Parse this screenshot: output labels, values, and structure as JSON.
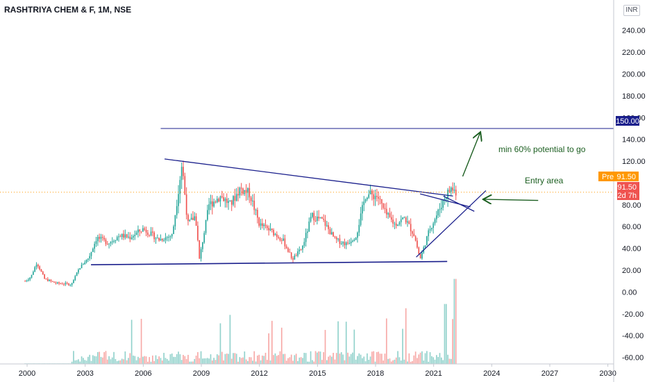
{
  "header": {
    "title": "RASHTRIYA CHEM & F, 1M, NSE",
    "currency": "INR"
  },
  "labels": {
    "target_price": "150.00",
    "pre_badge": "Pre",
    "pre_price": "91.50",
    "last_price": "91.50",
    "countdown": "12d 7h"
  },
  "annotations": {
    "potential": "min 60% potential to go",
    "entry": "Entry area"
  },
  "colors": {
    "up": "#26a69a",
    "down": "#ef5350",
    "trendline": "#1a1f8c",
    "arrow": "#1b5e20",
    "pre": "#ff9800",
    "last": "#ef5350"
  },
  "chart_data": {
    "type": "candlestick",
    "title": "RASHTRIYA CHEM & F, 1M, NSE",
    "xlabel": "",
    "ylabel": "",
    "xlim": [
      1998.6,
      2030.3
    ],
    "ylim": [
      -66,
      250
    ],
    "x_ticks": [
      2000,
      2003,
      2006,
      2009,
      2012,
      2015,
      2018,
      2021,
      2024,
      2027,
      2030
    ],
    "x_tick_labels": [
      "2000",
      "2003",
      "2006",
      "2009",
      "2012",
      "2015",
      "2018",
      "2021",
      "2024",
      "2027",
      "2030"
    ],
    "y_ticks": [
      240,
      220,
      200,
      180,
      160,
      140,
      120,
      80,
      60,
      40,
      20,
      0,
      -20,
      -40,
      -60
    ],
    "y_tick_labels": [
      "240.00",
      "220.00",
      "200.00",
      "180.00",
      "160.00",
      "140.00",
      "120.00",
      "80.00",
      "60.00",
      "40.00",
      "20.00",
      "0.00",
      "-20.00",
      "-40.00",
      "-60.00"
    ],
    "grid": false,
    "series": [
      {
        "name": "",
        "kind": "price",
        "anchors": [
          [
            1999.9,
            10
          ],
          [
            2000.2,
            14
          ],
          [
            2000.5,
            27
          ],
          [
            2000.9,
            12
          ],
          [
            2001.5,
            8
          ],
          [
            2002.3,
            7
          ],
          [
            2002.7,
            22
          ],
          [
            2003.2,
            32
          ],
          [
            2003.6,
            50
          ],
          [
            2004.2,
            45
          ],
          [
            2004.8,
            52
          ],
          [
            2005.3,
            50
          ],
          [
            2006.0,
            58
          ],
          [
            2006.8,
            48
          ],
          [
            2007.5,
            52
          ],
          [
            2008.0,
            118
          ],
          [
            2008.3,
            62
          ],
          [
            2008.7,
            70
          ],
          [
            2008.9,
            30
          ],
          [
            2009.4,
            80
          ],
          [
            2010.0,
            88
          ],
          [
            2010.5,
            80
          ],
          [
            2011.0,
            95
          ],
          [
            2011.5,
            90
          ],
          [
            2012.0,
            62
          ],
          [
            2012.6,
            56
          ],
          [
            2013.2,
            48
          ],
          [
            2013.7,
            30
          ],
          [
            2014.2,
            40
          ],
          [
            2014.7,
            70
          ],
          [
            2015.3,
            65
          ],
          [
            2015.9,
            48
          ],
          [
            2016.5,
            44
          ],
          [
            2017.0,
            52
          ],
          [
            2017.5,
            90
          ],
          [
            2018.1,
            88
          ],
          [
            2018.5,
            72
          ],
          [
            2019.0,
            62
          ],
          [
            2019.5,
            68
          ],
          [
            2020.0,
            52
          ],
          [
            2020.3,
            30
          ],
          [
            2020.8,
            58
          ],
          [
            2021.2,
            72
          ],
          [
            2021.6,
            88
          ],
          [
            2021.9,
            95
          ],
          [
            2022.2,
            91.5
          ]
        ],
        "last": 91.5
      },
      {
        "name": "",
        "kind": "volume",
        "values_note": "volume histogram shares the price axis as drawn (bars rise from about -66 to as high as 12)"
      }
    ],
    "drawings": [
      {
        "kind": "horizontal_line",
        "label": "150.00",
        "y": 150,
        "x_from": 2006.9,
        "x_to": 2030.3
      },
      {
        "kind": "trendline",
        "points": [
          [
            2007.1,
            122
          ],
          [
            2022.0,
            88
          ]
        ]
      },
      {
        "kind": "trendline",
        "points": [
          [
            2021.5,
            88
          ],
          [
            2023.1,
            74
          ]
        ]
      },
      {
        "kind": "support_line",
        "points": [
          [
            2003.3,
            25
          ],
          [
            2021.7,
            28
          ]
        ]
      },
      {
        "kind": "trendline",
        "points": [
          [
            2020.1,
            32
          ],
          [
            2023.7,
            93
          ]
        ]
      },
      {
        "kind": "trendline",
        "points": [
          [
            2020.3,
            90
          ],
          [
            2022.9,
            78
          ]
        ]
      },
      {
        "kind": "dotted_line",
        "y": 91.5
      },
      {
        "kind": "arrow",
        "label": "potential",
        "from": [
          2022.5,
          106
        ],
        "to": [
          2023.4,
          146
        ]
      },
      {
        "kind": "arrow",
        "label": "entry",
        "from": [
          2026.4,
          84
        ],
        "to": [
          2023.6,
          85
        ]
      }
    ]
  }
}
